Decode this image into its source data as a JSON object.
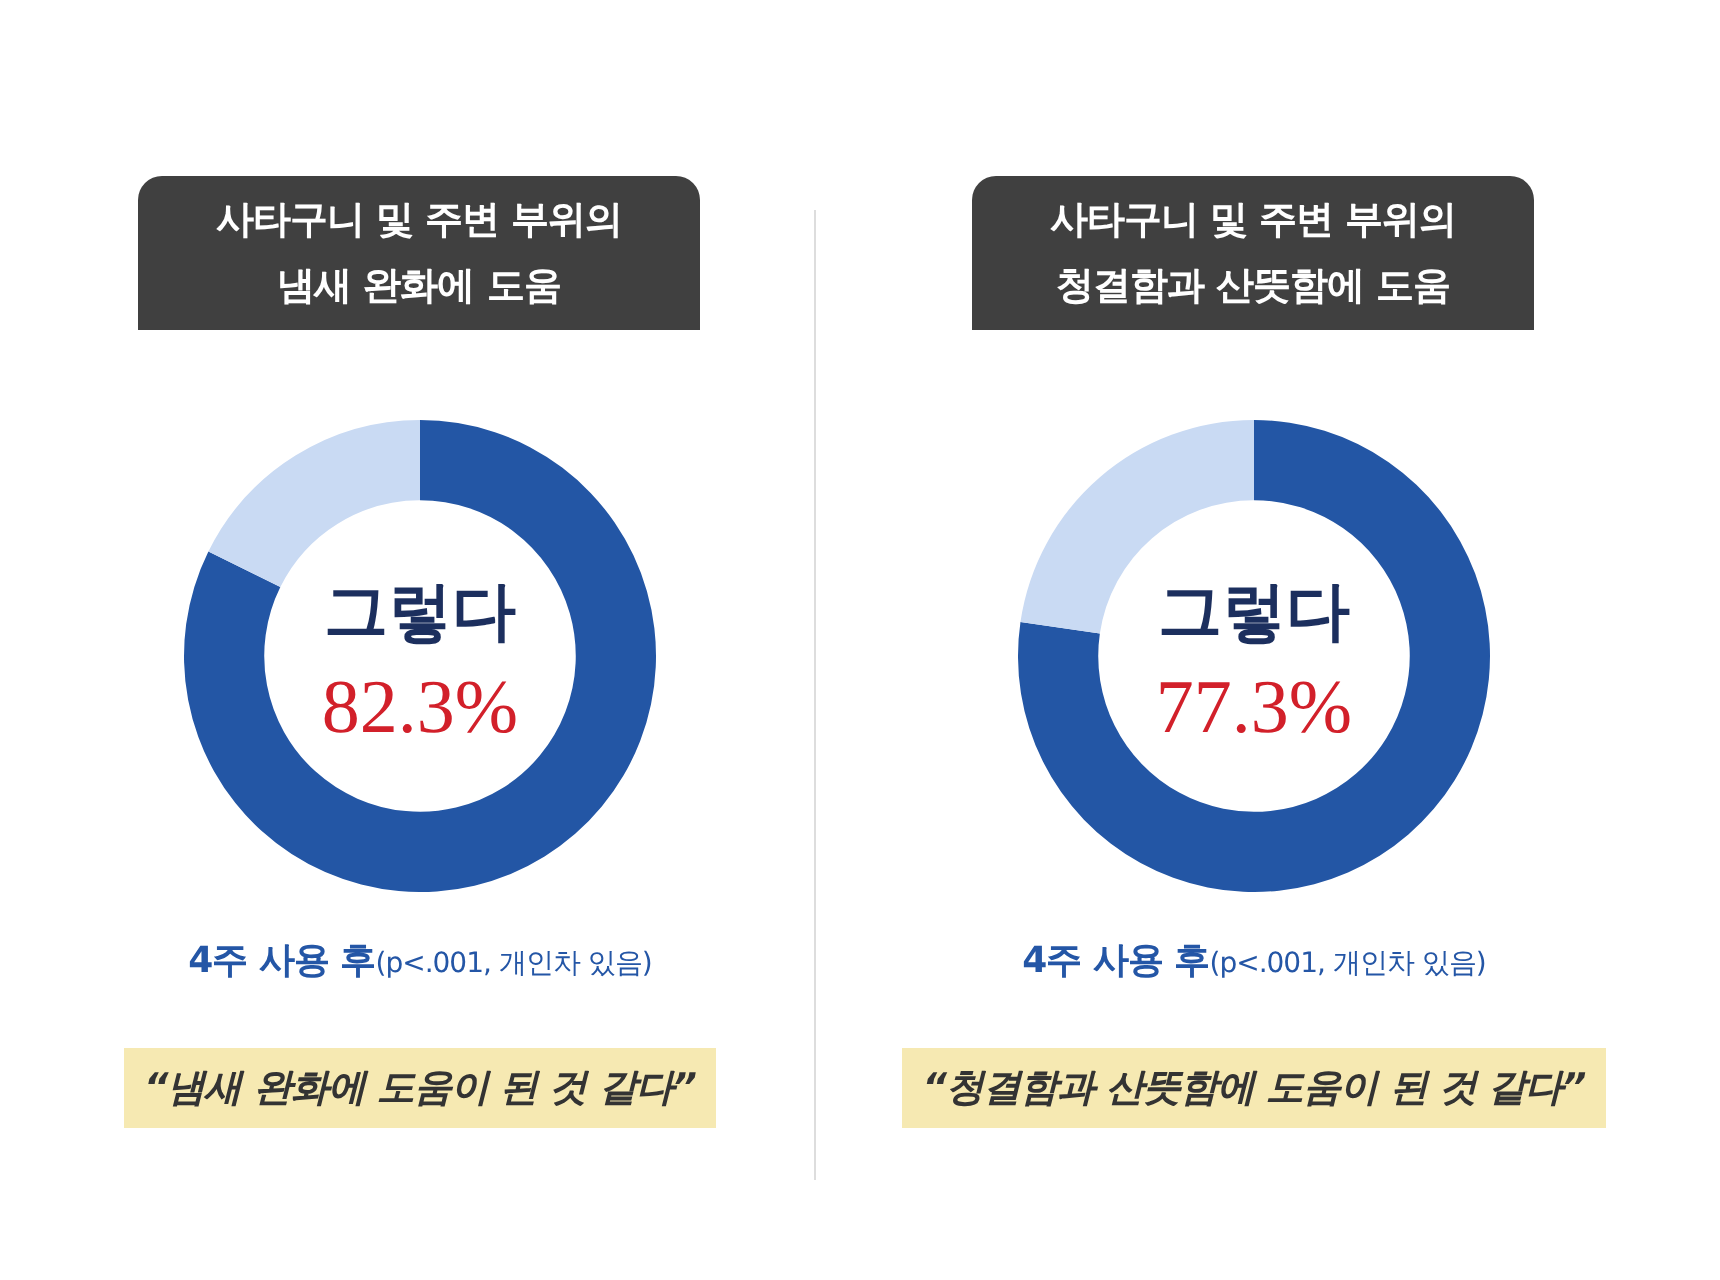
{
  "chart_data": [
    {
      "type": "donut",
      "title": "사타구니 및 주변 부위의\n냄새 완화에 도움",
      "categories": [
        "그렇다",
        null
      ],
      "values": [
        82.3,
        17.7
      ],
      "colors": [
        "#2356a5",
        "#c9daf3"
      ],
      "value_labels": [
        "82.3%",
        null
      ],
      "annotations": [
        "4주 사용 후",
        "(p<.001, 개인차 있음)",
        "“냄새 완화에 도움이 된 것 같다”"
      ]
    },
    {
      "type": "donut",
      "title": "사타구니 및 주변 부위의\n청결함과 산뜻함에 도움",
      "categories": [
        "그렇다",
        null
      ],
      "values": [
        77.3,
        22.7
      ],
      "colors": [
        "#2356a5",
        "#c9daf3"
      ],
      "value_labels": [
        "77.3%",
        null
      ],
      "annotations": [
        "4주 사용 후",
        "(p<.001, 개인차 있음)",
        "“청결함과 산뜻함에 도움이 된 것 같다”"
      ]
    }
  ]
}
